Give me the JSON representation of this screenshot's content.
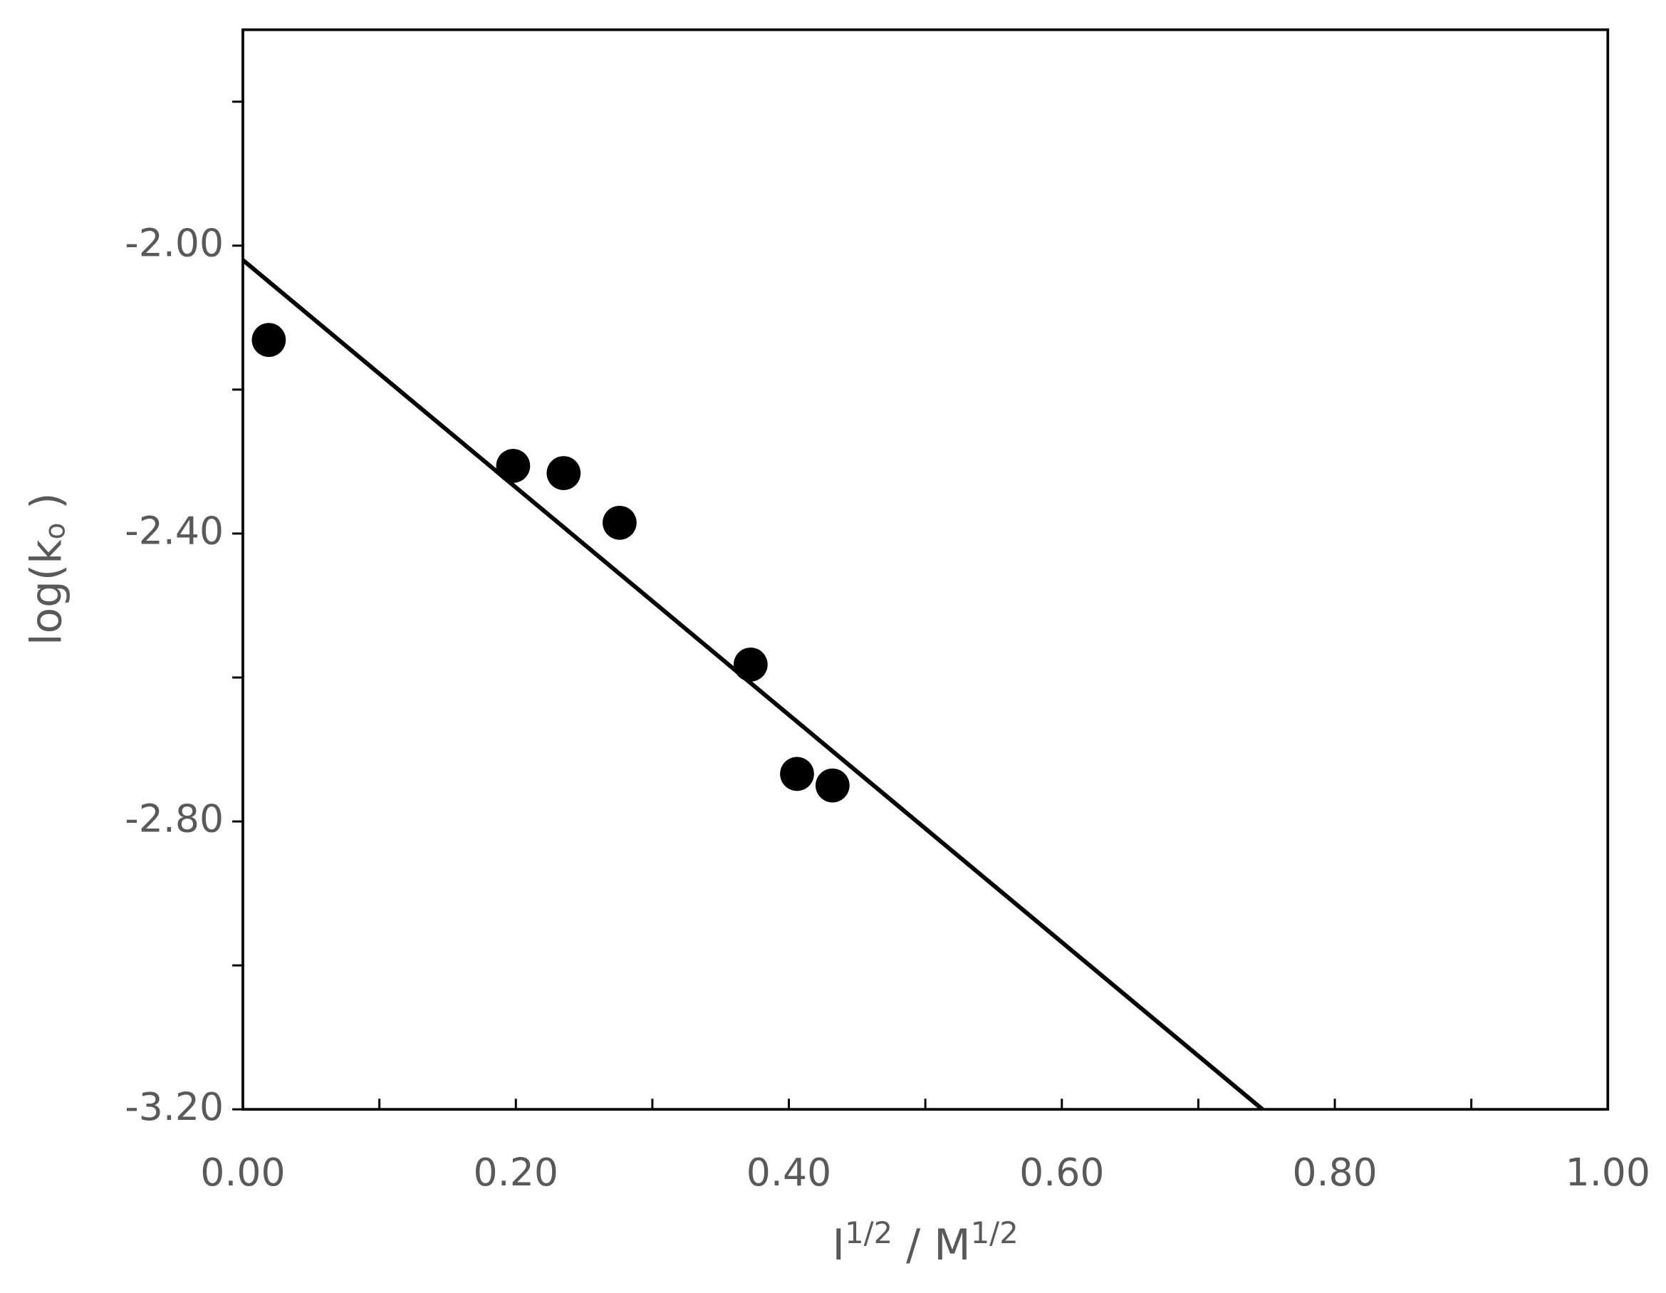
{
  "chart_data": {
    "type": "scatter",
    "x_label": [
      "I",
      "1/2",
      " / M",
      "1/2"
    ],
    "y_label": [
      "log(k",
      "o",
      " )"
    ],
    "points": {
      "x": [
        0.019,
        0.198,
        0.235,
        0.276,
        0.372,
        0.406,
        0.432
      ],
      "values": [
        -2.131,
        -2.306,
        -2.316,
        -2.385,
        -2.582,
        -2.734,
        -2.75
      ],
      "color": "#000000"
    },
    "fit_line": {
      "x": [
        0,
        0.747
      ],
      "values": [
        -2.02,
        -3.2
      ],
      "color": "#000000"
    },
    "xlim": [
      0,
      1
    ],
    "xticks": [
      {
        "value": 0,
        "label": "0.00"
      },
      {
        "value": 0.2,
        "label": "0.20"
      },
      {
        "value": 0.4,
        "label": "0.40"
      },
      {
        "value": 0.6,
        "label": "0.60"
      },
      {
        "value": 0.8,
        "label": "0.80"
      },
      {
        "value": 1,
        "label": "1.00"
      }
    ],
    "x_minor_ticks": [
      0.1,
      0.3,
      0.5,
      0.7,
      0.9
    ],
    "ylim": [
      -3.2,
      -1.7
    ],
    "yticks": [
      {
        "value": -2,
        "label": "-2.00"
      },
      {
        "value": -2.4,
        "label": "-2.40"
      },
      {
        "value": -2.8,
        "label": "-2.80"
      },
      {
        "value": -3.2,
        "label": "-3.20"
      }
    ],
    "y_minor_ticks": [
      -1.8,
      -2.2,
      -2.6,
      -3.0
    ],
    "grid": false
  }
}
